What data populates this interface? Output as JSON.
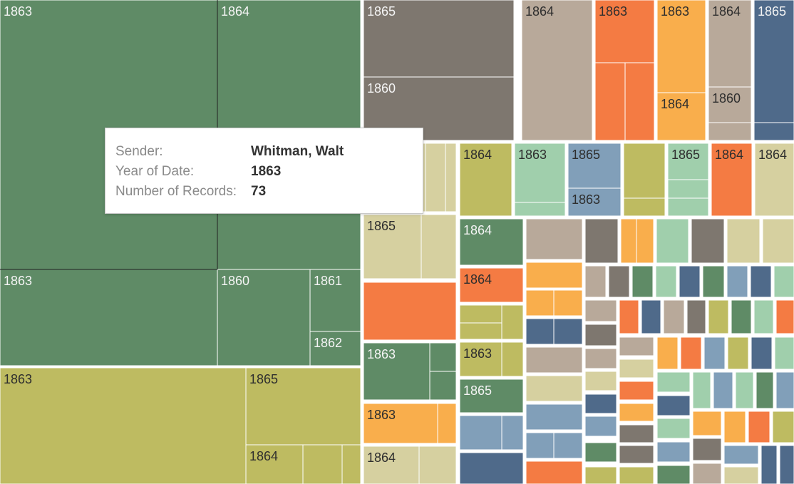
{
  "chart_data": {
    "type": "treemap",
    "palette": {
      "green": "#5f8b66",
      "olive": "#bebb61",
      "taupe": "#7e776f",
      "tan": "#b8a99a",
      "orange": "#f47b43",
      "gold": "#f9ae4c",
      "navy": "#4f6a8a",
      "mint": "#a0cfac",
      "steel": "#819fb9",
      "cream": "#d6d0a0",
      "light_text": "#f4f4f4",
      "dark_text": "#2e2e2e",
      "border": "#ffffff"
    },
    "tooltip": {
      "rows": [
        {
          "label": "Sender:",
          "value": "Whitman, Walt"
        },
        {
          "label": "Year of Date:",
          "value": "1863"
        },
        {
          "label": "Number of Records:",
          "value": "73"
        }
      ]
    },
    "labels": [
      "1863",
      "1864",
      "1865",
      "1863",
      "1860",
      "1864",
      "1863",
      "1863",
      "1864",
      "1864",
      "1860",
      "1865",
      "1860",
      "1861",
      "1862",
      "1863",
      "1865",
      "1864",
      "1864",
      "1863",
      "1865",
      "1863",
      "1865",
      "1864",
      "1864",
      "1865",
      "1863",
      "1863",
      "1864",
      "1864",
      "1864",
      "1863",
      "1865"
    ]
  }
}
